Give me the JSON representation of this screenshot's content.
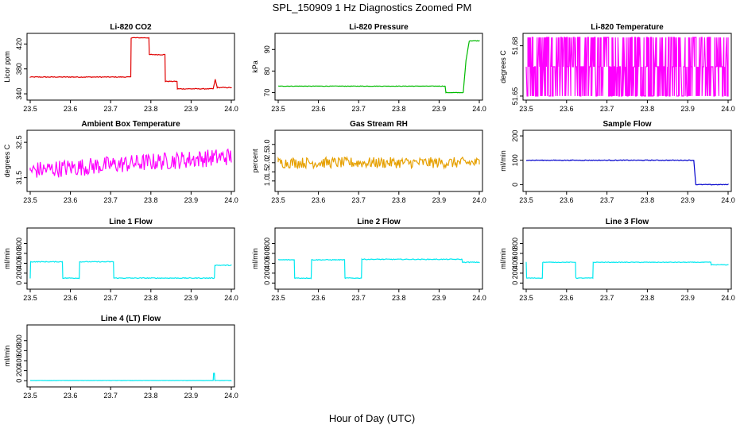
{
  "figure": {
    "title": "SPL_150909  1 Hz Diagnostics Zoomed PM",
    "xlabel": "Hour of Day (UTC)"
  },
  "chart_data": [
    {
      "type": "line",
      "title": "Li-820 CO2",
      "ylabel": "Licor ppm",
      "color": "#e00000",
      "xlim": [
        23.5,
        24.0
      ],
      "ylim": [
        335,
        432
      ],
      "xticks": [
        23.5,
        23.6,
        23.7,
        23.8,
        23.9,
        24.0
      ],
      "xtick_labels": [
        "23.5",
        "23.6",
        "23.7",
        "23.8",
        "23.9",
        "24.0"
      ],
      "yticks": [
        340,
        380,
        420
      ],
      "ytick_labels": [
        "340",
        "380",
        "420"
      ],
      "series": [
        {
          "name": "CO2",
          "noise": 0.6,
          "x": [
            23.5,
            23.75,
            23.751,
            23.795,
            23.796,
            23.835,
            23.836,
            23.865,
            23.866,
            23.955,
            23.96,
            23.965,
            24.0
          ],
          "y": [
            367,
            367,
            430,
            430,
            403,
            403,
            360,
            360,
            348,
            348,
            363,
            350,
            350
          ]
        }
      ]
    },
    {
      "type": "line",
      "title": "Li-820 Pressure",
      "ylabel": "kPa",
      "color": "#00bb00",
      "xlim": [
        23.5,
        24.0
      ],
      "ylim": [
        68,
        96
      ],
      "xticks": [
        23.5,
        23.6,
        23.7,
        23.8,
        23.9,
        24.0
      ],
      "xtick_labels": [
        "23.5",
        "23.6",
        "23.7",
        "23.8",
        "23.9",
        "24.0"
      ],
      "yticks": [
        70,
        80,
        90
      ],
      "ytick_labels": [
        "70",
        "80",
        "90"
      ],
      "series": [
        {
          "name": "Pressure",
          "noise": 0.1,
          "x": [
            23.5,
            23.915,
            23.917,
            23.96,
            23.967,
            23.975,
            24.0
          ],
          "y": [
            73,
            73,
            70,
            70,
            85,
            94,
            94
          ]
        }
      ]
    },
    {
      "type": "line",
      "title": "Li-820 Temperature",
      "ylabel": "degrees C",
      "color": "#ff00ff",
      "xlim": [
        23.5,
        24.0
      ],
      "ylim": [
        51.6495,
        51.6855
      ],
      "xticks": [
        23.5,
        23.6,
        23.7,
        23.8,
        23.9,
        24.0
      ],
      "xtick_labels": [
        "23.5",
        "23.6",
        "23.7",
        "23.8",
        "23.9",
        "24.0"
      ],
      "yticks": [
        51.65,
        51.68
      ],
      "ytick_labels": [
        "51.65",
        "51.68"
      ],
      "series": [
        {
          "name": "Temperature",
          "levels": [
            51.65,
            51.6675,
            51.685
          ],
          "x": [
            23.5,
            24.0
          ]
        }
      ]
    },
    {
      "type": "line",
      "title": "Ambient Box Temperature",
      "ylabel": "degrees C",
      "color": "#ff00ff",
      "xlim": [
        23.5,
        24.0
      ],
      "ylim": [
        31.2,
        32.75
      ],
      "xticks": [
        23.5,
        23.6,
        23.7,
        23.8,
        23.9,
        24.0
      ],
      "xtick_labels": [
        "23.5",
        "23.6",
        "23.7",
        "23.8",
        "23.9",
        "24.0"
      ],
      "yticks": [
        31.5,
        32.5
      ],
      "ytick_labels": [
        "31.5",
        "32.5"
      ],
      "series": [
        {
          "name": "Box temperature",
          "noise": 0.25,
          "x": [
            23.5,
            24.0
          ],
          "y": [
            31.7,
            32.1
          ]
        }
      ]
    },
    {
      "type": "line",
      "title": "Gas Stream RH",
      "ylabel": "percent",
      "color": "#e6a000",
      "xlim": [
        23.5,
        24.0
      ],
      "ylim": [
        0.6,
        3.6
      ],
      "xticks": [
        23.5,
        23.6,
        23.7,
        23.8,
        23.9,
        24.0
      ],
      "xtick_labels": [
        "23.5",
        "23.6",
        "23.7",
        "23.8",
        "23.9",
        "24.0"
      ],
      "yticks": [
        1.0,
        1.5,
        2.0,
        2.5,
        3.0
      ],
      "ytick_labels": [
        "1.0",
        "1.5",
        "2.0",
        "2.5",
        "3.0"
      ],
      "series": [
        {
          "name": "RH",
          "noise": 0.3,
          "x": [
            23.5,
            24.0
          ],
          "y": [
            2.0,
            2.0
          ]
        }
      ]
    },
    {
      "type": "line",
      "title": "Sample Flow",
      "ylabel": "ml/min",
      "color": "#0000cc",
      "xlim": [
        23.5,
        24.0
      ],
      "ylim": [
        -15,
        210
      ],
      "xticks": [
        23.5,
        23.6,
        23.7,
        23.8,
        23.9,
        24.0
      ],
      "xtick_labels": [
        "23.5",
        "23.6",
        "23.7",
        "23.8",
        "23.9",
        "24.0"
      ],
      "yticks": [
        0,
        100,
        200
      ],
      "ytick_labels": [
        "0",
        "100",
        "200"
      ],
      "series": [
        {
          "name": "Sample flow",
          "noise": 1.5,
          "x": [
            23.5,
            23.915,
            23.92,
            24.0
          ],
          "y": [
            100,
            100,
            0,
            0
          ]
        }
      ]
    },
    {
      "type": "line",
      "title": "Line 1 Flow",
      "ylabel": "ml/min",
      "color": "#00e8f0",
      "xlim": [
        23.5,
        24.0
      ],
      "ylim": [
        -60,
        1050
      ],
      "xticks": [
        23.5,
        23.6,
        23.7,
        23.8,
        23.9,
        24.0
      ],
      "xtick_labels": [
        "23.5",
        "23.6",
        "23.7",
        "23.8",
        "23.9",
        "24.0"
      ],
      "yticks": [
        0,
        200,
        400,
        600,
        800
      ],
      "ytick_labels": [
        "0",
        "200",
        "400",
        "600",
        "800"
      ],
      "series": [
        {
          "name": "Line 1",
          "noise": 8,
          "x": [
            23.5,
            23.501,
            23.58,
            23.581,
            23.622,
            23.623,
            23.707,
            23.708,
            23.958,
            23.959,
            24.0
          ],
          "y": [
            100,
            430,
            430,
            100,
            100,
            430,
            430,
            100,
            100,
            360,
            360
          ]
        }
      ]
    },
    {
      "type": "line",
      "title": "Line 2 Flow",
      "ylabel": "ml/min",
      "color": "#00e8f0",
      "xlim": [
        23.5,
        24.0
      ],
      "ylim": [
        -60,
        1050
      ],
      "xticks": [
        23.5,
        23.6,
        23.7,
        23.8,
        23.9,
        24.0
      ],
      "xtick_labels": [
        "23.5",
        "23.6",
        "23.7",
        "23.8",
        "23.9",
        "24.0"
      ],
      "yticks": [
        0,
        200,
        400,
        600,
        800
      ],
      "ytick_labels": [
        "0",
        "200",
        "400",
        "600",
        "800"
      ],
      "series": [
        {
          "name": "Line 2",
          "noise": 8,
          "x": [
            23.5,
            23.54,
            23.541,
            23.582,
            23.583,
            23.665,
            23.666,
            23.707,
            23.708,
            23.957,
            23.958,
            24.0
          ],
          "y": [
            470,
            470,
            100,
            100,
            470,
            470,
            100,
            100,
            480,
            480,
            420,
            420
          ]
        }
      ]
    },
    {
      "type": "line",
      "title": "Line 3 Flow",
      "ylabel": "ml/min",
      "color": "#00e8f0",
      "xlim": [
        23.5,
        24.0
      ],
      "ylim": [
        -60,
        1050
      ],
      "xticks": [
        23.5,
        23.6,
        23.7,
        23.8,
        23.9,
        24.0
      ],
      "xtick_labels": [
        "23.5",
        "23.6",
        "23.7",
        "23.8",
        "23.9",
        "24.0"
      ],
      "yticks": [
        0,
        200,
        400,
        600,
        800
      ],
      "ytick_labels": [
        "0",
        "200",
        "400",
        "600",
        "800"
      ],
      "series": [
        {
          "name": "Line 3",
          "noise": 6,
          "x": [
            23.5,
            23.501,
            23.54,
            23.541,
            23.622,
            23.623,
            23.665,
            23.666,
            23.957,
            23.958,
            24.0
          ],
          "y": [
            420,
            100,
            100,
            420,
            420,
            100,
            100,
            420,
            420,
            370,
            370
          ]
        }
      ]
    },
    {
      "type": "line",
      "title": "Line 4 (LT) Flow",
      "ylabel": "ml/min",
      "color": "#00e8f0",
      "xlim": [
        23.5,
        24.0
      ],
      "ylim": [
        -60,
        1050
      ],
      "xticks": [
        23.5,
        23.6,
        23.7,
        23.8,
        23.9,
        24.0
      ],
      "xtick_labels": [
        "23.5",
        "23.6",
        "23.7",
        "23.8",
        "23.9",
        "24.0"
      ],
      "yticks": [
        0,
        200,
        400,
        600,
        800
      ],
      "ytick_labels": [
        "0",
        "200",
        "400",
        "600",
        "800"
      ],
      "series": [
        {
          "name": "Line 4",
          "noise": 2,
          "x": [
            23.5,
            23.955,
            23.956,
            23.958,
            23.959,
            24.0
          ],
          "y": [
            5,
            5,
            150,
            150,
            5,
            5
          ]
        }
      ]
    }
  ]
}
